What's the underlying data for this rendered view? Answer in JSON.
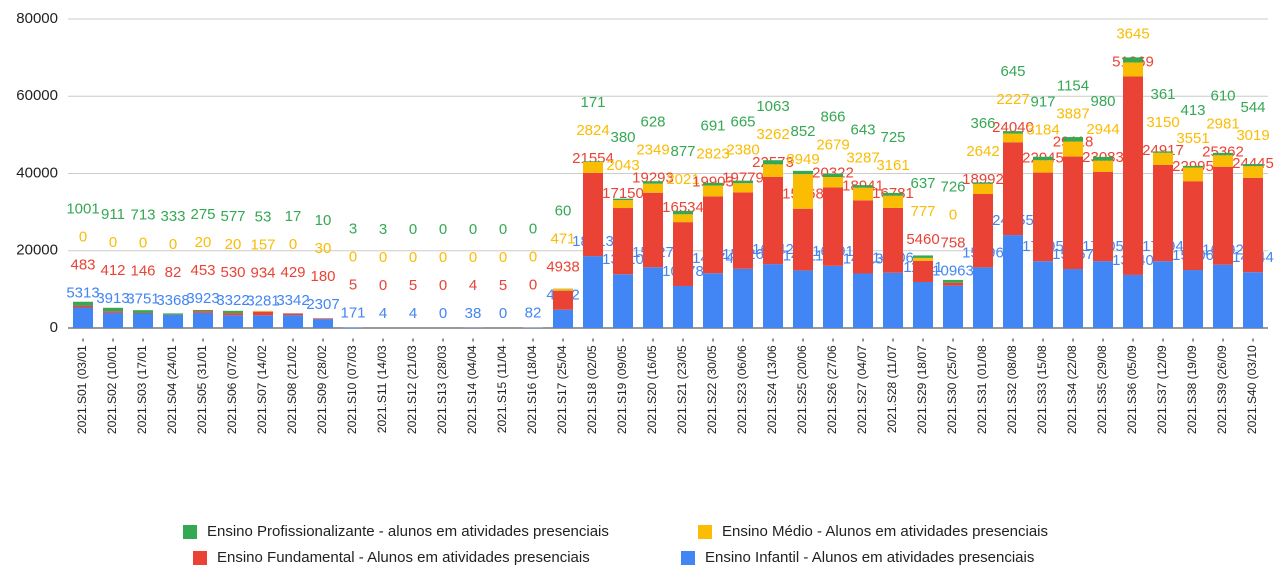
{
  "chart_data": {
    "type": "bar",
    "stacked": true,
    "categories": [
      "2021.S01 (03/01 -",
      "2021.S02 (10/01 -",
      "2021.S03 (17/01 -",
      "2021.S04 (24/01 -",
      "2021.S05 (31/01 -",
      "2021.S06 (07/02 -",
      "2021.S07 (14/02 -",
      "2021.S08 (21/02 -",
      "2021.S09 (28/02 -",
      "2021.S10 (07/03 -",
      "2021.S11 (14/03 -",
      "2021.S12 (21/03 -",
      "2021.S13 (28/03 -",
      "2021.S14 (04/04 -",
      "2021.S15 (11/04 -",
      "2021.S16 (18/04 -",
      "2021.S17 (25/04 -",
      "2021.S18 (02/05 -",
      "2021.S19 (09/05 -",
      "2021.S20 (16/05 -",
      "2021.S21 (23/05 -",
      "2021.S22 (30/05 -",
      "2021.S23 (06/06 -",
      "2021.S24 (13/06 -",
      "2021.S25 (20/06 -",
      "2021.S26 (27/06 -",
      "2021.S27 (04/07 -",
      "2021.S28 (11/07 -",
      "2021.S29 (18/07 -",
      "2021.S30 (25/07 -",
      "2021.S31 (01/08 -",
      "2021.S32 (08/08 -",
      "2021.S33 (15/08 -",
      "2021.S34 (22/08 -",
      "2021.S35 (29/08 -",
      "2021.S36 (05/09 -",
      "2021.S37 (12/09 -",
      "2021.S38 (19/09 -",
      "2021.S39 (26/09 -",
      "2021.S40 (03/10 -"
    ],
    "series": [
      {
        "name": "Ensino Infantil - Alunos em atividades presenciais",
        "color": "#4285f4",
        "values": [
          5313,
          3913,
          3751,
          3368,
          3923,
          3322,
          3281,
          3342,
          2307,
          171,
          4,
          4,
          0,
          38,
          0,
          82,
          4732,
          18613,
          13910,
          15727,
          10878,
          14174,
          15326,
          16542,
          14911,
          16091,
          14113,
          14306,
          11911,
          10963,
          15696,
          24055,
          17295,
          15267,
          17305,
          13740,
          17294,
          15006,
          16392,
          14444
        ]
      },
      {
        "name": "Ensino Fundamental - Alunos em atividades presenciais",
        "color": "#ea4335",
        "values": [
          483,
          412,
          146,
          82,
          453,
          530,
          934,
          429,
          180,
          5,
          0,
          5,
          0,
          4,
          5,
          0,
          4938,
          21554,
          17150,
          19293,
          16534,
          19903,
          19779,
          22573,
          15968,
          20322,
          18941,
          16781,
          5460,
          758,
          18992,
          24040,
          22945,
          29118,
          23083,
          51369,
          24917,
          22995,
          25362,
          24445
        ]
      },
      {
        "name": "Ensino Médio - Alunos em atividades presenciais",
        "color": "#fbbc04",
        "values": [
          0,
          0,
          0,
          0,
          20,
          20,
          157,
          0,
          30,
          0,
          0,
          0,
          0,
          0,
          0,
          0,
          471,
          2824,
          2043,
          2349,
          2021,
          2823,
          2380,
          3262,
          8949,
          2679,
          3287,
          3161,
          777,
          0,
          2642,
          2227,
          3184,
          3887,
          2944,
          3645,
          3150,
          3551,
          2981,
          3019
        ]
      },
      {
        "name": "Ensino Profissionalizante - alunos em atividades presenciais",
        "color": "#34a853",
        "values": [
          1001,
          911,
          713,
          333,
          275,
          577,
          53,
          17,
          10,
          3,
          3,
          0,
          0,
          0,
          0,
          0,
          60,
          171,
          380,
          628,
          877,
          691,
          665,
          1063,
          852,
          866,
          643,
          725,
          637,
          726,
          366,
          645,
          917,
          1154,
          980,
          1300,
          361,
          413,
          610,
          544
        ],
        "value_labels": [
          "1001",
          "911",
          "713",
          "333",
          "275",
          "577",
          "53",
          "17",
          "10",
          "3",
          "3",
          "0",
          "0",
          "0",
          "0",
          "0",
          "60",
          "171",
          "380",
          "628",
          "877",
          "691",
          "665",
          "1063",
          "852",
          "866",
          "643",
          "725",
          "637",
          "726",
          "366",
          "645",
          "917",
          "1154",
          "980",
          null,
          "361",
          "413",
          "610",
          "544"
        ]
      }
    ],
    "ylim": [
      0,
      80000
    ],
    "yticks": [
      0,
      20000,
      40000,
      60000,
      80000
    ],
    "grid": true,
    "legend": "bottom"
  }
}
